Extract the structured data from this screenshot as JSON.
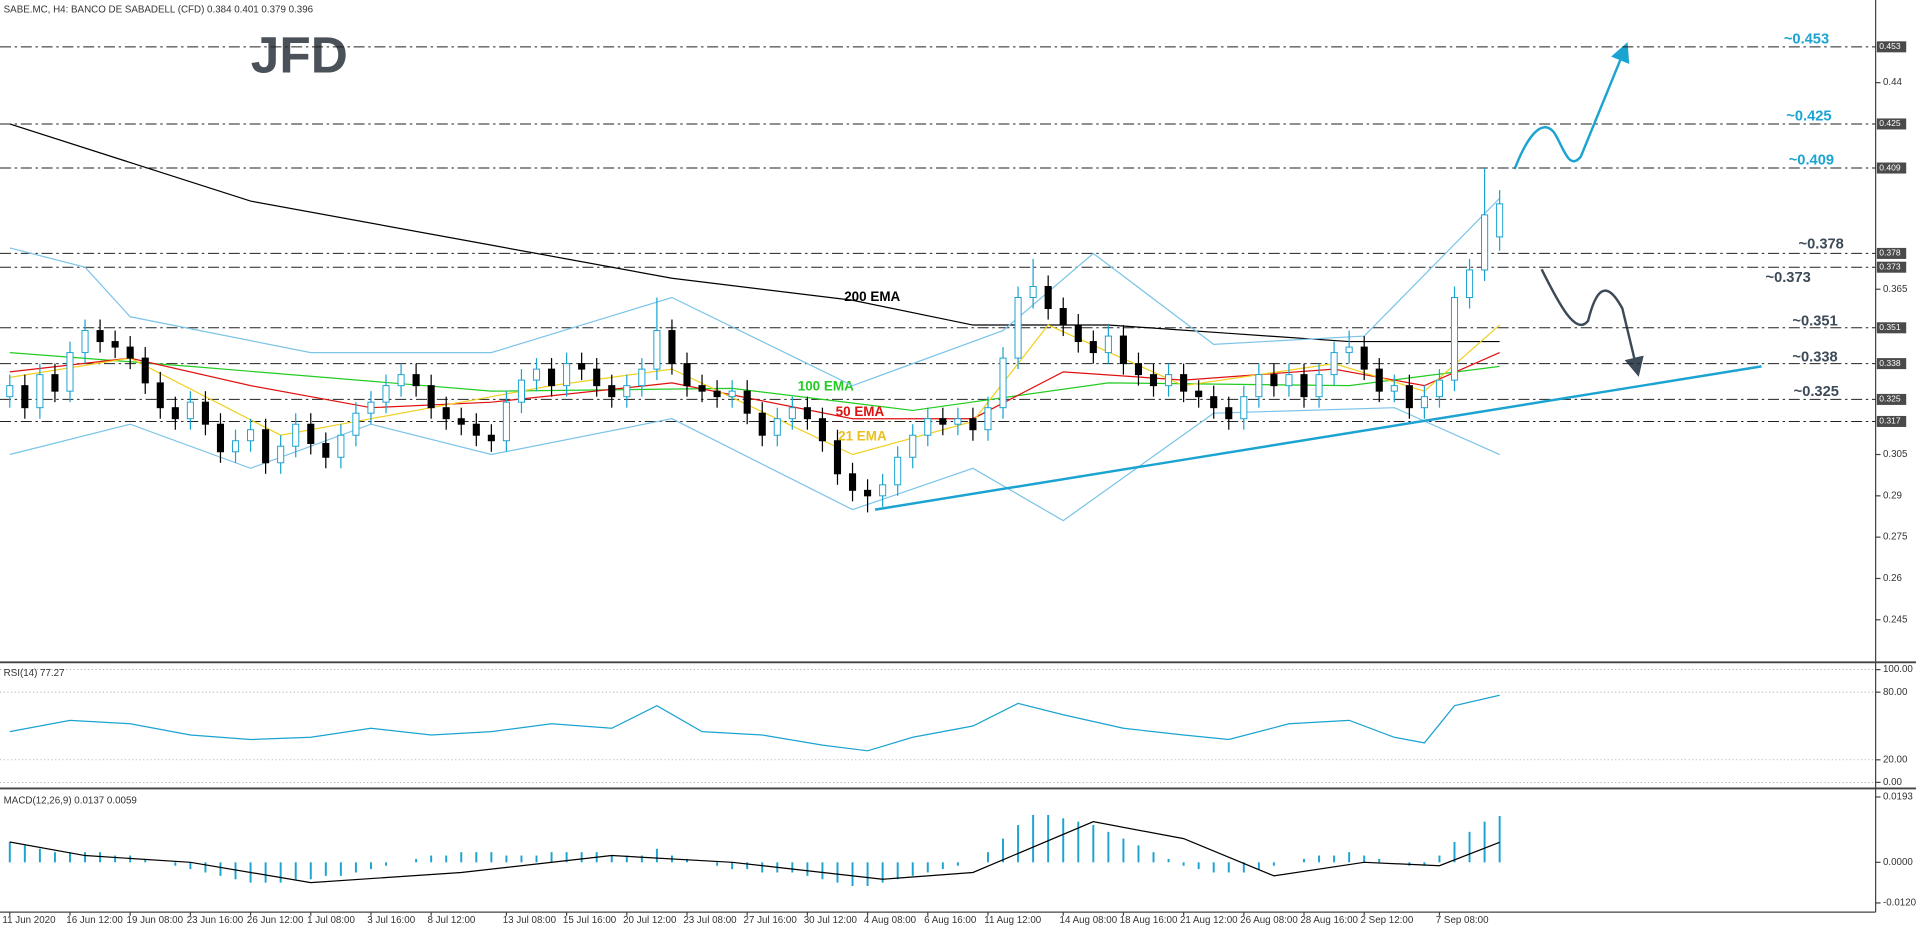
{
  "header": "SABE.MC, H4:  BANCO DE SABADELL (CFD)  0.384 0.401 0.379 0.396",
  "logo": "JFD",
  "chart_data": [
    {
      "type": "candlestick",
      "categories": [
        "11 Jun 2020",
        null,
        null,
        null,
        "16 Jun 12:00",
        null,
        null,
        null,
        "19 Jun 08:00",
        null,
        null,
        null,
        "23 Jun 16:00",
        null,
        null,
        null,
        "26 Jun 12:00",
        null,
        null,
        null,
        "1 Jul 08:00",
        null,
        null,
        null,
        "3 Jul 16:00",
        null,
        null,
        null,
        "8 Jul 12:00",
        null,
        null,
        null,
        null,
        "13 Jul 08:00",
        null,
        null,
        null,
        "15 Jul 16:00",
        null,
        null,
        null,
        "20 Jul 12:00",
        null,
        null,
        null,
        "23 Jul 08:00",
        null,
        null,
        null,
        "27 Jul 16:00",
        null,
        null,
        null,
        "30 Jul 12:00",
        null,
        null,
        null,
        "4 Aug 08:00",
        null,
        null,
        null,
        "6 Aug 16:00",
        null,
        null,
        null,
        "11 Aug 12:00",
        null,
        null,
        null,
        null,
        "14 Aug 08:00",
        null,
        null,
        null,
        "18 Aug 16:00",
        null,
        null,
        null,
        "21 Aug 12:00",
        null,
        null,
        null,
        "26 Aug 08:00",
        null,
        null,
        null,
        "28 Aug 16:00",
        null,
        null,
        null,
        "2 Sep 12:00",
        null,
        null,
        null,
        null,
        "7 Sep 08:00",
        null,
        null,
        null,
        null
      ],
      "open": [
        0.326,
        0.33,
        0.322,
        0.334,
        0.328,
        0.342,
        0.35,
        0.346,
        0.344,
        0.34,
        0.331,
        0.322,
        0.318,
        0.324,
        0.316,
        0.306,
        0.31,
        0.314,
        0.302,
        0.308,
        0.316,
        0.309,
        0.304,
        0.312,
        0.32,
        0.324,
        0.33,
        0.334,
        0.33,
        0.322,
        0.318,
        0.316,
        0.312,
        0.31,
        0.324,
        0.332,
        0.336,
        0.33,
        0.338,
        0.336,
        0.33,
        0.326,
        0.33,
        0.336,
        0.35,
        0.338,
        0.33,
        0.328,
        0.326,
        0.328,
        0.32,
        0.312,
        0.318,
        0.322,
        0.318,
        0.31,
        0.298,
        0.292,
        0.29,
        0.294,
        0.304,
        0.312,
        0.318,
        0.316,
        0.318,
        0.314,
        0.322,
        0.34,
        0.362,
        0.366,
        0.358,
        0.352,
        0.346,
        0.342,
        0.348,
        0.338,
        0.334,
        0.33,
        0.334,
        0.328,
        0.326,
        0.322,
        0.318,
        0.326,
        0.334,
        0.33,
        0.334,
        0.326,
        0.334,
        0.342,
        0.344,
        0.336,
        0.328,
        0.33,
        0.322,
        0.326,
        0.332,
        0.362,
        0.372,
        0.384
      ],
      "high": [
        0.334,
        0.334,
        0.338,
        0.338,
        0.346,
        0.354,
        0.354,
        0.35,
        0.348,
        0.344,
        0.335,
        0.326,
        0.328,
        0.328,
        0.32,
        0.314,
        0.318,
        0.318,
        0.312,
        0.32,
        0.32,
        0.313,
        0.316,
        0.324,
        0.328,
        0.334,
        0.338,
        0.338,
        0.334,
        0.326,
        0.322,
        0.32,
        0.316,
        0.328,
        0.336,
        0.34,
        0.34,
        0.342,
        0.342,
        0.34,
        0.334,
        0.334,
        0.34,
        0.362,
        0.354,
        0.342,
        0.334,
        0.332,
        0.332,
        0.332,
        0.324,
        0.322,
        0.326,
        0.326,
        0.322,
        0.314,
        0.302,
        0.296,
        0.298,
        0.308,
        0.316,
        0.322,
        0.322,
        0.322,
        0.322,
        0.326,
        0.344,
        0.366,
        0.376,
        0.37,
        0.362,
        0.356,
        0.35,
        0.352,
        0.352,
        0.342,
        0.338,
        0.338,
        0.338,
        0.332,
        0.33,
        0.326,
        0.33,
        0.338,
        0.338,
        0.338,
        0.338,
        0.338,
        0.346,
        0.35,
        0.348,
        0.34,
        0.334,
        0.334,
        0.33,
        0.336,
        0.366,
        0.376,
        0.409,
        0.401
      ],
      "low": [
        0.322,
        0.318,
        0.318,
        0.324,
        0.324,
        0.338,
        0.342,
        0.34,
        0.336,
        0.327,
        0.318,
        0.314,
        0.314,
        0.312,
        0.302,
        0.302,
        0.306,
        0.298,
        0.298,
        0.304,
        0.305,
        0.3,
        0.3,
        0.308,
        0.316,
        0.32,
        0.326,
        0.326,
        0.318,
        0.314,
        0.312,
        0.308,
        0.306,
        0.306,
        0.32,
        0.328,
        0.326,
        0.326,
        0.332,
        0.326,
        0.322,
        0.322,
        0.326,
        0.332,
        0.334,
        0.326,
        0.324,
        0.322,
        0.322,
        0.316,
        0.308,
        0.308,
        0.314,
        0.314,
        0.306,
        0.294,
        0.288,
        0.284,
        0.286,
        0.29,
        0.3,
        0.308,
        0.312,
        0.312,
        0.31,
        0.31,
        0.318,
        0.336,
        0.358,
        0.354,
        0.348,
        0.342,
        0.338,
        0.338,
        0.334,
        0.33,
        0.326,
        0.326,
        0.324,
        0.322,
        0.318,
        0.314,
        0.314,
        0.322,
        0.326,
        0.326,
        0.322,
        0.322,
        0.33,
        0.338,
        0.332,
        0.324,
        0.324,
        0.318,
        0.318,
        0.322,
        0.328,
        0.358,
        0.368,
        0.379
      ],
      "close": [
        0.33,
        0.322,
        0.334,
        0.328,
        0.342,
        0.35,
        0.346,
        0.344,
        0.34,
        0.331,
        0.322,
        0.318,
        0.324,
        0.316,
        0.306,
        0.31,
        0.314,
        0.302,
        0.308,
        0.316,
        0.309,
        0.304,
        0.312,
        0.32,
        0.324,
        0.33,
        0.334,
        0.33,
        0.322,
        0.318,
        0.316,
        0.312,
        0.31,
        0.324,
        0.332,
        0.336,
        0.33,
        0.338,
        0.336,
        0.33,
        0.326,
        0.33,
        0.336,
        0.35,
        0.338,
        0.33,
        0.328,
        0.326,
        0.328,
        0.32,
        0.312,
        0.318,
        0.322,
        0.318,
        0.31,
        0.298,
        0.292,
        0.29,
        0.294,
        0.304,
        0.312,
        0.318,
        0.316,
        0.318,
        0.314,
        0.322,
        0.34,
        0.362,
        0.366,
        0.358,
        0.352,
        0.346,
        0.342,
        0.348,
        0.338,
        0.334,
        0.33,
        0.334,
        0.328,
        0.326,
        0.322,
        0.318,
        0.326,
        0.334,
        0.33,
        0.334,
        0.326,
        0.334,
        0.342,
        0.344,
        0.336,
        0.328,
        0.33,
        0.322,
        0.326,
        0.332,
        0.362,
        0.372,
        0.392,
        0.396
      ],
      "up_color": "#1ba3d1",
      "down_color": "#000000",
      "ylim": [
        0.23,
        0.47
      ],
      "yticks": [
        0.44,
        0.365,
        0.305,
        0.29,
        0.275,
        0.26,
        0.245
      ],
      "levels": [
        {
          "value": 0.453,
          "label": "~0.453",
          "color": "#1ba3d1"
        },
        {
          "value": 0.425,
          "label": "~0.425",
          "color": "#1ba3d1"
        },
        {
          "value": 0.409,
          "label": "~0.409",
          "color": "#1ba3d1"
        },
        {
          "value": 0.378,
          "label": "~0.378",
          "color": "#3d4a57"
        },
        {
          "value": 0.373,
          "label": "~0.373",
          "color": "#3d4a57"
        },
        {
          "value": 0.351,
          "label": "~0.351",
          "color": "#3d4a57"
        },
        {
          "value": 0.338,
          "label": "~0.338",
          "color": "#3d4a57"
        },
        {
          "value": 0.325,
          "label": "~0.325",
          "color": "#3d4a57"
        },
        {
          "value": 0.317
        }
      ],
      "lines": [
        {
          "name": "200 EMA",
          "color": "#000000",
          "x": [
            0,
            16,
            32,
            44,
            56,
            64,
            73,
            81,
            89,
            99
          ],
          "values": [
            0.425,
            0.397,
            0.381,
            0.369,
            0.361,
            0.352,
            0.352,
            0.349,
            0.346,
            0.346
          ]
        },
        {
          "name": "100 EMA",
          "color": "#22cc22",
          "x": [
            0,
            12,
            32,
            48,
            60,
            73,
            89,
            99
          ],
          "values": [
            0.342,
            0.337,
            0.328,
            0.329,
            0.321,
            0.331,
            0.33,
            0.337
          ]
        },
        {
          "name": "50 EMA",
          "color": "#e01010",
          "x": [
            0,
            8,
            16,
            24,
            32,
            44,
            56,
            64,
            70,
            78,
            88,
            94,
            99
          ],
          "values": [
            0.335,
            0.34,
            0.33,
            0.322,
            0.324,
            0.331,
            0.318,
            0.318,
            0.335,
            0.332,
            0.336,
            0.33,
            0.342
          ]
        },
        {
          "name": "21 EMA",
          "color": "#f0d020",
          "x": [
            0,
            8,
            18,
            24,
            36,
            44,
            56,
            64,
            69,
            78,
            88,
            94,
            99
          ],
          "values": [
            0.333,
            0.34,
            0.312,
            0.318,
            0.33,
            0.336,
            0.305,
            0.317,
            0.352,
            0.33,
            0.338,
            0.328,
            0.352
          ]
        },
        {
          "color": "#7cc4e8",
          "x": [
            0,
            5,
            8,
            20,
            32,
            44,
            56,
            66,
            72,
            80,
            90,
            99
          ],
          "values": [
            0.38,
            0.373,
            0.355,
            0.342,
            0.342,
            0.362,
            0.33,
            0.35,
            0.378,
            0.345,
            0.348,
            0.398
          ]
        },
        {
          "color": "#7cc4e8",
          "x": [
            0,
            8,
            16,
            24,
            32,
            44,
            56,
            64,
            70,
            80,
            92,
            99
          ],
          "values": [
            0.305,
            0.316,
            0.3,
            0.316,
            0.305,
            0.318,
            0.285,
            0.3,
            0.281,
            0.32,
            0.322,
            0.305
          ]
        },
        {
          "color": "#1ba3d1",
          "x": [
            57.5,
            116.4
          ],
          "values": [
            0.285,
            0.337
          ]
        }
      ]
    },
    {
      "type": "line",
      "title": "RSI(14) 77.27",
      "series": [
        {
          "color": "#1ba3d1",
          "x": [
            0,
            4,
            8,
            12,
            16,
            20,
            24,
            28,
            32,
            36,
            40,
            43,
            46,
            50,
            54,
            57,
            60,
            64,
            67,
            70,
            74,
            78,
            81,
            85,
            89,
            92,
            94,
            96,
            99
          ],
          "values": [
            45,
            55,
            52,
            42,
            38,
            40,
            48,
            42,
            45,
            52,
            48,
            68,
            45,
            42,
            33,
            28,
            40,
            50,
            70,
            60,
            48,
            42,
            38,
            52,
            55,
            40,
            35,
            68,
            77.27
          ]
        }
      ],
      "ylim": [
        -4.3,
        104.3
      ],
      "yticks": [
        {
          "value": 100,
          "label": "100.00"
        },
        {
          "value": 80,
          "label": "80.00"
        },
        {
          "value": 20,
          "label": "20.00"
        },
        {
          "value": 0,
          "label": "0.00"
        }
      ]
    },
    {
      "type": "macd",
      "title": "MACD(12,26,9) 0.0137 0.0059",
      "histogram": {
        "color": "#1ba3d1",
        "values": [
          0.006,
          0.005,
          0.004,
          0.003,
          0.003,
          0.003,
          0.003,
          0.002,
          0.002,
          0.001,
          0.0,
          -0.001,
          -0.002,
          -0.003,
          -0.004,
          -0.005,
          -0.006,
          -0.006,
          -0.006,
          -0.005,
          -0.005,
          -0.004,
          -0.004,
          -0.003,
          -0.002,
          -0.001,
          0.0,
          0.001,
          0.002,
          0.002,
          0.003,
          0.003,
          0.003,
          0.002,
          0.002,
          0.002,
          0.003,
          0.003,
          0.003,
          0.003,
          0.002,
          0.002,
          0.002,
          0.004,
          0.002,
          0.001,
          0.0,
          -0.001,
          -0.002,
          -0.002,
          -0.003,
          -0.003,
          -0.003,
          -0.004,
          -0.005,
          -0.006,
          -0.007,
          -0.007,
          -0.006,
          -0.005,
          -0.004,
          -0.003,
          -0.002,
          -0.001,
          0.0,
          0.003,
          0.007,
          0.011,
          0.014,
          0.014,
          0.013,
          0.012,
          0.011,
          0.009,
          0.007,
          0.005,
          0.003,
          0.001,
          -0.001,
          -0.002,
          -0.003,
          -0.003,
          -0.003,
          -0.002,
          -0.001,
          0.0,
          0.001,
          0.002,
          0.002,
          0.003,
          0.002,
          0.001,
          0.0,
          -0.001,
          -0.001,
          0.002,
          0.006,
          0.009,
          0.012,
          0.0137
        ]
      },
      "signal": {
        "color": "#000000",
        "x": [
          0,
          5,
          12,
          20,
          30,
          40,
          48,
          58,
          64,
          72,
          78,
          84,
          90,
          95,
          99
        ],
        "values": [
          0.006,
          0.002,
          0.0,
          -0.006,
          -0.003,
          0.002,
          0.0,
          -0.005,
          -0.003,
          0.012,
          0.007,
          -0.004,
          0.0,
          -0.001,
          0.0059
        ]
      },
      "ylim": [
        -0.0147,
        0.0211
      ],
      "yticks": [
        {
          "value": 0.0193,
          "label": "0.0193"
        },
        {
          "value": 0,
          "label": "0.0000"
        },
        {
          "value": -0.012,
          "label": "-0.0120"
        }
      ]
    }
  ]
}
